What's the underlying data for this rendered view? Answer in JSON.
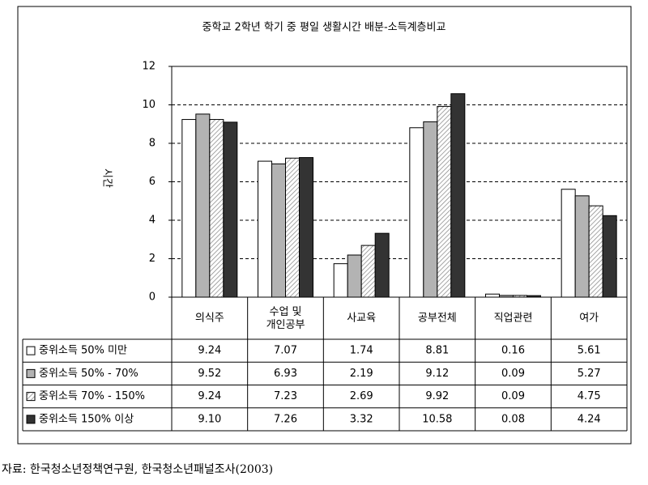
{
  "chart_data": {
    "type": "bar",
    "title": "중학교 2학년 학기 중 평일 생활시간 배분-소득계층비교",
    "y_label": "시간",
    "categories": [
      "의식주",
      "수업 및\n개인공부",
      "사교육",
      "공부전체",
      "직업관련",
      "여가"
    ],
    "series": [
      {
        "name": "중위소득 50% 미만",
        "color": "#ffffff",
        "values": [
          9.24,
          7.07,
          1.74,
          8.81,
          0.16,
          5.61
        ],
        "value_labels": [
          "9.24",
          "7.07",
          "1.74",
          "8.81",
          "0.16",
          "5.61"
        ]
      },
      {
        "name": "중위소득 50% - 70%",
        "color": "#b3b3b3",
        "values": [
          9.52,
          6.93,
          2.19,
          9.12,
          0.09,
          5.27
        ],
        "value_labels": [
          "9.52",
          "6.93",
          "2.19",
          "9.12",
          "0.09",
          "5.27"
        ]
      },
      {
        "name": "중위소득 70% - 150%",
        "color": "#888888",
        "pattern": "diagonal",
        "values": [
          9.24,
          7.23,
          2.69,
          9.92,
          0.09,
          4.75
        ],
        "value_labels": [
          "9.24",
          "7.23",
          "2.69",
          "9.92",
          "0.09",
          "4.75"
        ]
      },
      {
        "name": "중위소득 150% 이상",
        "color": "#333333",
        "values": [
          9.1,
          7.26,
          3.32,
          10.58,
          0.08,
          4.24
        ],
        "value_labels": [
          "9.10",
          "7.26",
          "3.32",
          "10.58",
          "0.08",
          "4.24"
        ]
      }
    ],
    "ylim": [
      0,
      12
    ],
    "yticks": [
      0,
      2,
      4,
      6,
      8,
      10,
      12
    ],
    "grid": true
  },
  "source": "자료: 한국청소년정책연구원, 한국청소년패널조사(2003)"
}
